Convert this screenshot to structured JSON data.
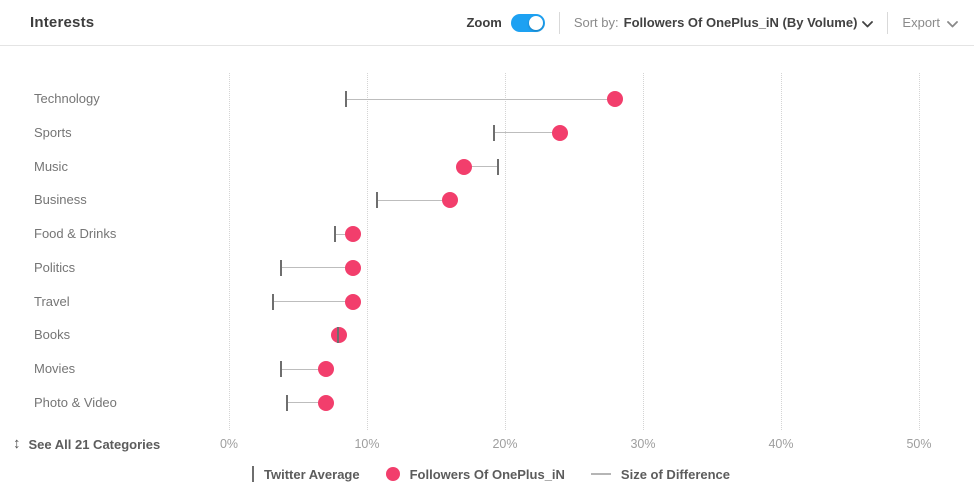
{
  "header": {
    "title": "Interests",
    "zoom_label": "Zoom",
    "zoom_on": true,
    "sort_by_prefix": "Sort by:",
    "sort_by_value": "Followers Of OnePlus_iN (By Volume)",
    "export_label": "Export"
  },
  "footer": {
    "see_all_label": "See All 21 Categories"
  },
  "icons": {
    "see_all_arrows": "↕"
  },
  "colors": {
    "accent_pink": "#f23e6c",
    "toggle_blue": "#1da1f2",
    "avg_tick_gray": "#6e6e6e",
    "connector_gray": "#bdbdbd"
  },
  "legend": [
    {
      "symbol": "tick",
      "label": "Twitter Average"
    },
    {
      "symbol": "dot",
      "label": "Followers Of OnePlus_iN"
    },
    {
      "symbol": "line",
      "label": "Size of Difference"
    }
  ],
  "chart_data": {
    "type": "scatter",
    "subtype": "dumbbell-dot-plot",
    "title": "Interests",
    "categories": [
      "Technology",
      "Sports",
      "Music",
      "Business",
      "Food & Drinks",
      "Politics",
      "Travel",
      "Books",
      "Movies",
      "Photo & Video"
    ],
    "series": [
      {
        "name": "Twitter Average",
        "marker": "tick",
        "unit": "%",
        "values": [
          8.5,
          19.2,
          19.5,
          10.7,
          7.7,
          3.8,
          3.2,
          7.9,
          3.8,
          4.2
        ]
      },
      {
        "name": "Followers Of OnePlus_iN",
        "marker": "dot",
        "unit": "%",
        "values": [
          28,
          24,
          17,
          16,
          9,
          9,
          9,
          8,
          7,
          7
        ]
      }
    ],
    "difference_series_name": "Size of Difference",
    "xlabel": "",
    "ylabel": "",
    "xlim": [
      0,
      50
    ],
    "xtick_values": [
      0,
      10,
      20,
      30,
      40,
      50
    ],
    "xtick_labels": [
      "0%",
      "10%",
      "20%",
      "30%",
      "40%",
      "50%"
    ],
    "grid": "vertical-dotted",
    "legend_position": "bottom",
    "total_categories_available": 21
  }
}
